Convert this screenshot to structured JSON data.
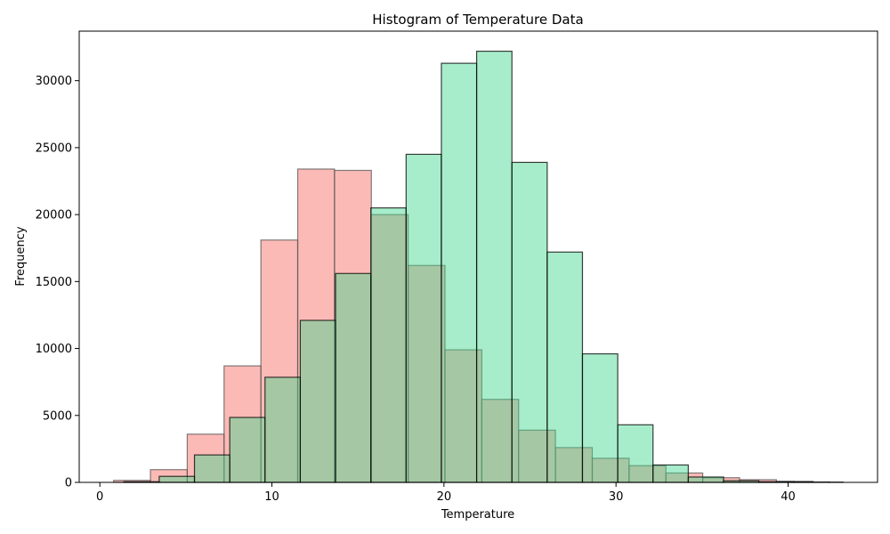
{
  "chart_data": {
    "type": "bar",
    "title": "Histogram of Temperature Data",
    "xlabel": "Temperature",
    "ylabel": "Frequency",
    "xlim": [
      -1.2,
      45.2
    ],
    "ylim": [
      0,
      33700
    ],
    "xticks": [
      0,
      10,
      20,
      30,
      40
    ],
    "yticks": [
      0,
      5000,
      10000,
      15000,
      20000,
      25000,
      30000
    ],
    "grid": false,
    "legend": "none",
    "series": [
      {
        "color": "#f8766d",
        "edge_color": "#555555",
        "opacity": 0.5,
        "bin_edges": [
          0.8,
          2.94,
          5.08,
          7.22,
          9.36,
          11.5,
          13.64,
          15.78,
          17.92,
          20.06,
          22.2,
          24.34,
          26.48,
          28.62,
          30.76,
          32.9,
          35.04,
          37.18,
          39.32,
          41.46
        ],
        "values": [
          150,
          950,
          3600,
          8700,
          18100,
          23400,
          23300,
          20000,
          16200,
          9900,
          6200,
          3900,
          2600,
          1800,
          1250,
          700,
          350,
          200,
          80
        ]
      },
      {
        "color": "#3fd68b",
        "edge_color": "#000000",
        "opacity": 0.45,
        "bin_edges": [
          1.4,
          3.45,
          5.5,
          7.55,
          9.6,
          11.65,
          13.7,
          15.75,
          17.8,
          19.85,
          21.9,
          23.95,
          26.0,
          28.05,
          30.1,
          32.15,
          34.2,
          36.25,
          38.3,
          40.35,
          42.4,
          43.2
        ],
        "values": [
          50,
          450,
          2050,
          4850,
          7850,
          12100,
          15600,
          20500,
          24500,
          31300,
          32200,
          23900,
          17200,
          9600,
          4300,
          1300,
          400,
          120,
          50,
          30,
          20
        ]
      }
    ]
  }
}
